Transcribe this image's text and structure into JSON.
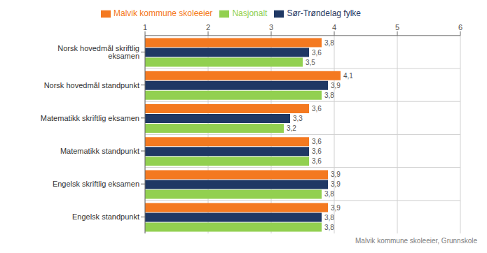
{
  "chart_data": {
    "type": "bar",
    "orientation": "horizontal",
    "categories": [
      "Norsk hovedmål skriftlig eksamen",
      "Norsk hovedmål standpunkt",
      "Matematikk skriftlig eksamen",
      "Matematikk standpunkt",
      "Engelsk skriftlig eksamen",
      "Engelsk standpunkt"
    ],
    "series": [
      {
        "name": "Malvik kommune skoleeier",
        "color": "#F47920",
        "values": [
          3.8,
          4.1,
          3.6,
          3.6,
          3.9,
          3.9
        ],
        "value_labels": [
          "3,8",
          "4,1",
          "3,6",
          "3,6",
          "3,9",
          "3,9"
        ]
      },
      {
        "name": "Sør-Trøndelag fylke",
        "color": "#1F3864",
        "values": [
          3.6,
          3.9,
          3.3,
          3.6,
          3.9,
          3.8
        ],
        "value_labels": [
          "3,6",
          "3,9",
          "3,3",
          "3,6",
          "3,9",
          "3,8"
        ]
      },
      {
        "name": "Nasjonalt",
        "color": "#92D050",
        "values": [
          3.5,
          3.8,
          3.2,
          3.6,
          3.8,
          3.8
        ],
        "value_labels": [
          "3,5",
          "3,8",
          "3,2",
          "3,6",
          "3,8",
          "3,8"
        ]
      }
    ],
    "xlim": [
      1,
      6
    ],
    "xticks": [
      1,
      2,
      3,
      4,
      5,
      6
    ],
    "grid": true,
    "legend": "top",
    "data_labels": true,
    "annotations": [
      "Malvik kommune skoleeier, Grunnskole"
    ]
  }
}
